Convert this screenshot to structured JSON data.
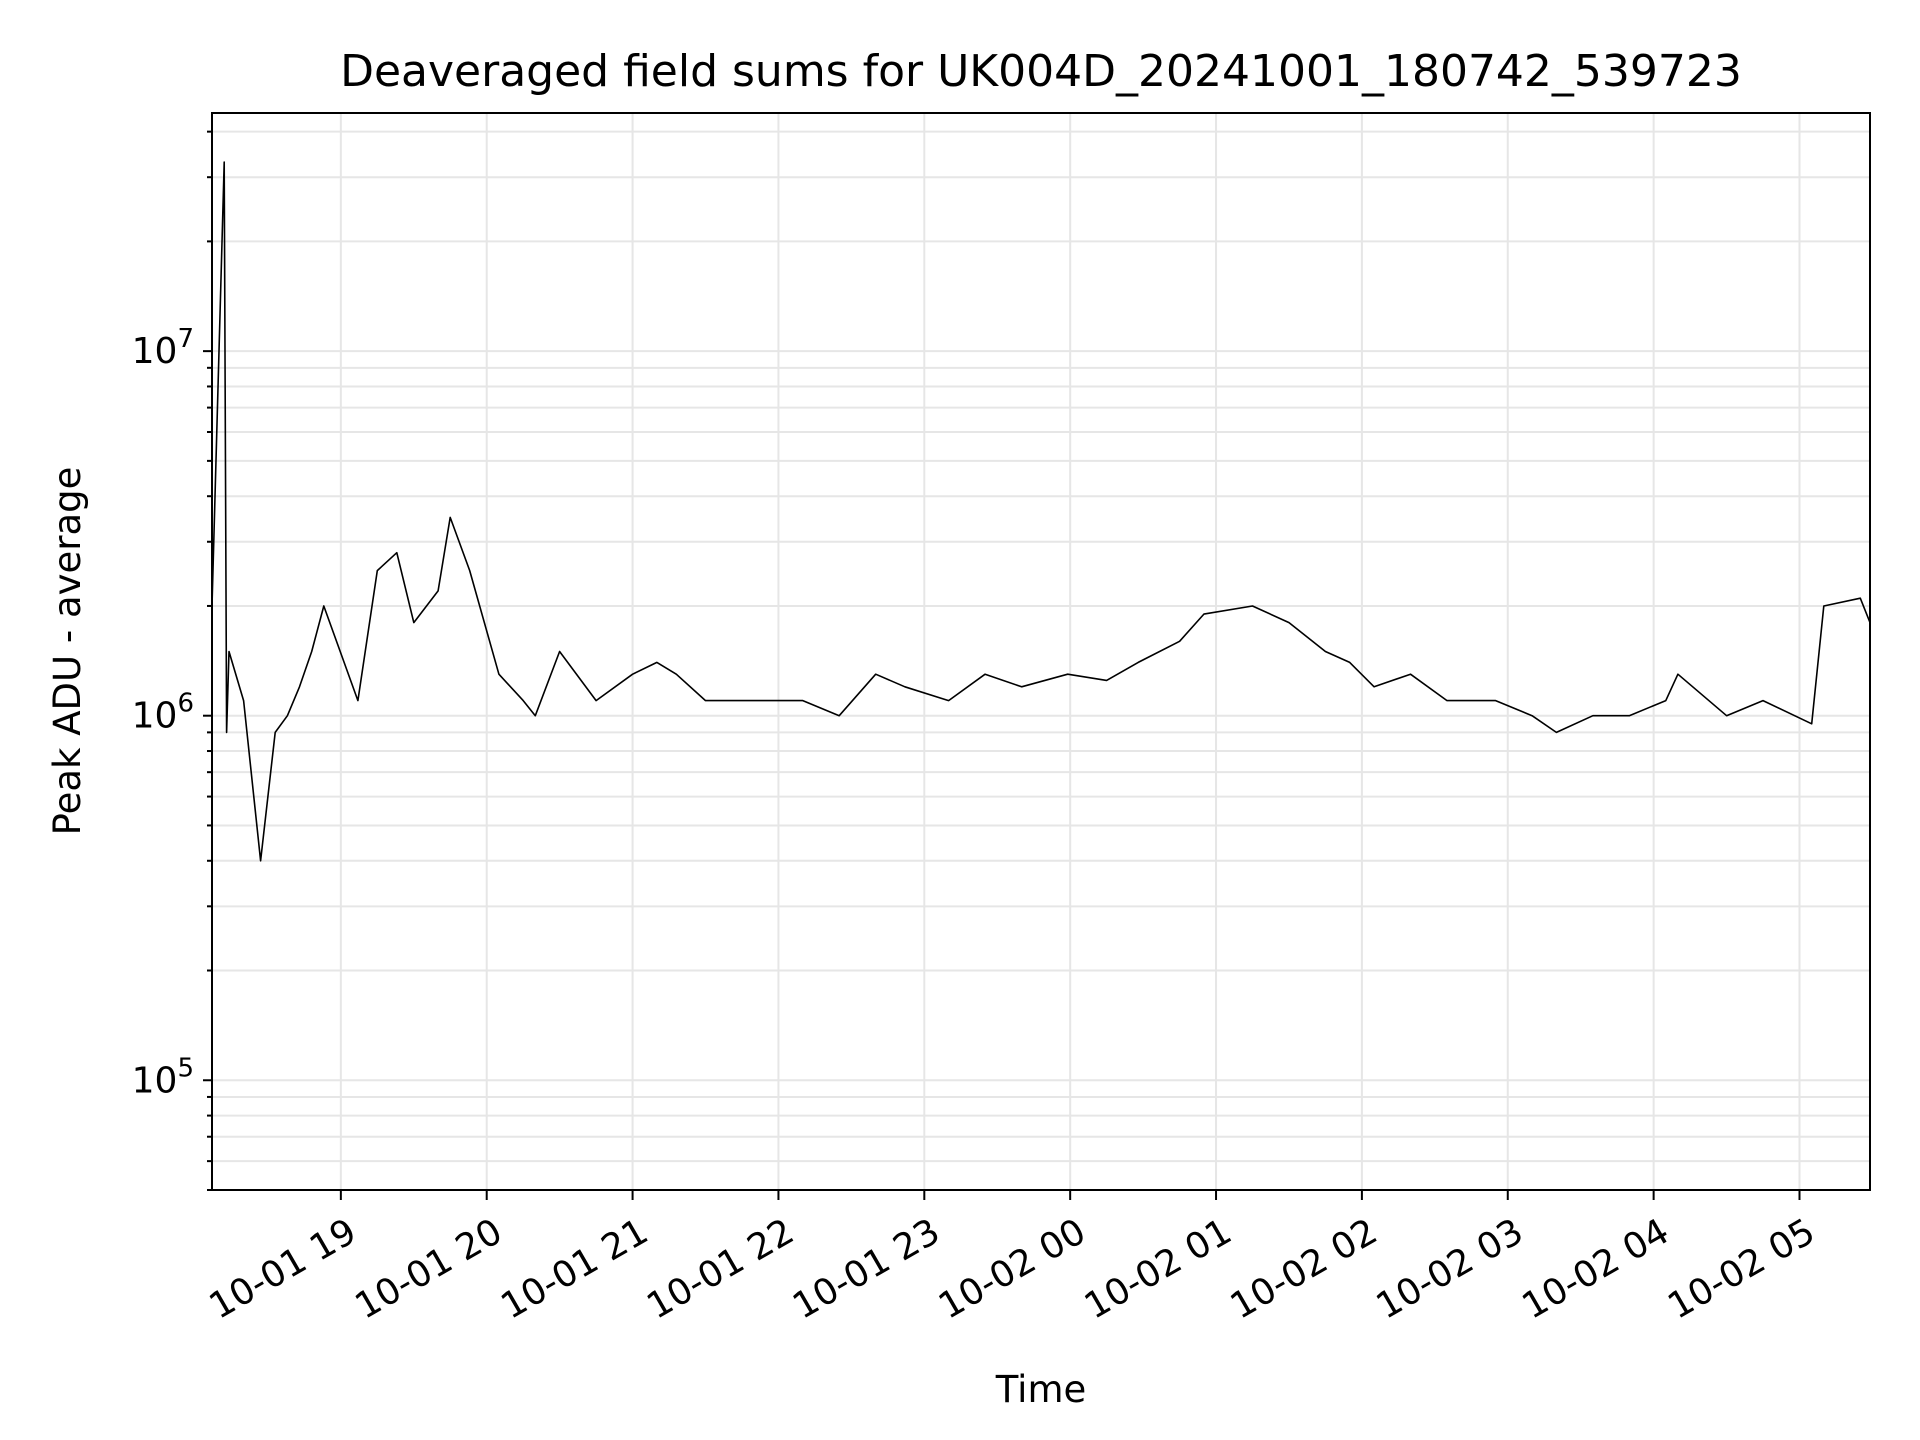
{
  "chart_data": {
    "type": "line",
    "title": "Deaveraged field sums for UK004D_20241001_180742_539723",
    "xlabel": "Time",
    "ylabel": "Peak ADU - average",
    "yscale": "log",
    "ylim": [
      50000,
      45000000
    ],
    "xlim": [
      "2024-10-01 18:07",
      "2024-10-02 05:29"
    ],
    "x_ticks": [
      {
        "t": "2024-10-01 19:00",
        "label": "10-01 19"
      },
      {
        "t": "2024-10-01 20:00",
        "label": "10-01 20"
      },
      {
        "t": "2024-10-01 21:00",
        "label": "10-01 21"
      },
      {
        "t": "2024-10-01 22:00",
        "label": "10-01 22"
      },
      {
        "t": "2024-10-01 23:00",
        "label": "10-01 23"
      },
      {
        "t": "2024-10-02 00:00",
        "label": "10-02 00"
      },
      {
        "t": "2024-10-02 01:00",
        "label": "10-02 01"
      },
      {
        "t": "2024-10-02 02:00",
        "label": "10-02 02"
      },
      {
        "t": "2024-10-02 03:00",
        "label": "10-02 03"
      },
      {
        "t": "2024-10-02 04:00",
        "label": "10-02 04"
      },
      {
        "t": "2024-10-02 05:00",
        "label": "10-02 05"
      }
    ],
    "y_ticks": [
      {
        "value": 100000,
        "base": "10",
        "exp": "5"
      },
      {
        "value": 1000000,
        "base": "10",
        "exp": "6"
      },
      {
        "value": 10000000,
        "base": "10",
        "exp": "7"
      }
    ],
    "grid": true,
    "line_color": "#000000",
    "grid_color": "#e6e6e6",
    "series": [
      {
        "x": [
          "2024-10-01 18:07",
          "2024-10-01 18:12",
          "2024-10-01 18:13",
          "2024-10-01 18:14",
          "2024-10-01 18:20",
          "2024-10-01 18:27",
          "2024-10-01 18:33",
          "2024-10-01 18:38",
          "2024-10-01 18:43",
          "2024-10-01 18:48",
          "2024-10-01 18:53",
          "2024-10-01 19:07",
          "2024-10-01 19:15",
          "2024-10-01 19:23",
          "2024-10-01 19:30",
          "2024-10-01 19:40",
          "2024-10-01 19:45",
          "2024-10-01 19:53",
          "2024-10-01 20:05",
          "2024-10-01 20:15",
          "2024-10-01 20:20",
          "2024-10-01 20:30",
          "2024-10-01 20:45",
          "2024-10-01 21:00",
          "2024-10-01 21:10",
          "2024-10-01 21:18",
          "2024-10-01 21:30",
          "2024-10-01 21:50",
          "2024-10-01 22:10",
          "2024-10-01 22:25",
          "2024-10-01 22:40",
          "2024-10-01 22:52",
          "2024-10-01 23:10",
          "2024-10-01 23:25",
          "2024-10-01 23:40",
          "2024-10-01 23:59",
          "2024-10-02 00:15",
          "2024-10-02 00:28",
          "2024-10-02 00:45",
          "2024-10-02 00:55",
          "2024-10-02 01:15",
          "2024-10-02 01:30",
          "2024-10-02 01:45",
          "2024-10-02 01:55",
          "2024-10-02 02:05",
          "2024-10-02 02:20",
          "2024-10-02 02:35",
          "2024-10-02 02:55",
          "2024-10-02 03:10",
          "2024-10-02 03:20",
          "2024-10-02 03:35",
          "2024-10-02 03:50",
          "2024-10-02 04:05",
          "2024-10-02 04:10",
          "2024-10-02 04:30",
          "2024-10-02 04:45",
          "2024-10-02 05:05",
          "2024-10-02 05:10",
          "2024-10-02 05:25",
          "2024-10-02 05:29"
        ],
        "y": [
          2000000,
          33000000,
          900000,
          1500000,
          1100000,
          400000,
          900000,
          1000000,
          1200000,
          1500000,
          2000000,
          1100000,
          2500000,
          2800000,
          1800000,
          2200000,
          3500000,
          2500000,
          1300000,
          1100000,
          1000000,
          1500000,
          1100000,
          1300000,
          1400000,
          1300000,
          1100000,
          1100000,
          1100000,
          1000000,
          1300000,
          1200000,
          1100000,
          1300000,
          1200000,
          1300000,
          1250000,
          1400000,
          1600000,
          1900000,
          2000000,
          1800000,
          1500000,
          1400000,
          1200000,
          1300000,
          1100000,
          1100000,
          1000000,
          900000,
          1000000,
          1000000,
          1100000,
          1300000,
          1000000,
          1100000,
          950000,
          2000000,
          2100000,
          1800000
        ]
      }
    ]
  }
}
